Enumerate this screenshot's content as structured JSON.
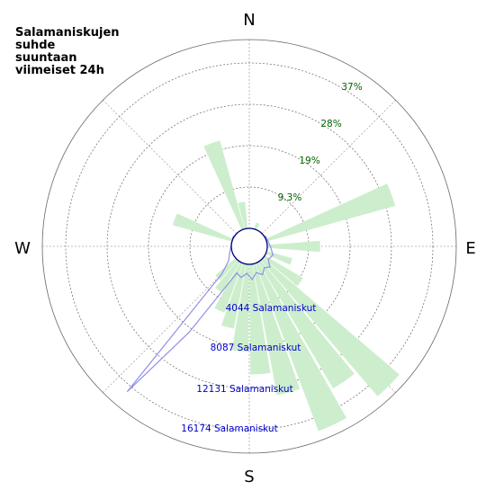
{
  "title_lines": [
    "Salamaniskujen",
    "suhde",
    "suuntaan",
    "viimeiset  24h"
  ],
  "compass": {
    "n": "N",
    "e": "E",
    "s": "S",
    "w": "W"
  },
  "colors": {
    "wedge_fill": "#cdeecd",
    "count_line": "#8f8fe8",
    "ring": "#666666",
    "spoke": "#aaaaaa",
    "center": "#00007a",
    "pct_text": "#006400",
    "count_text": "#0000cc"
  },
  "chart_data": {
    "type": "polar-rose",
    "direction_convention": "clockwise from north, degrees",
    "percentage_scale": {
      "rings": [
        9.3,
        19,
        28,
        37
      ],
      "labels": [
        "9.3%",
        "19%",
        "28%",
        "37%"
      ]
    },
    "count_scale": {
      "rings": [
        4044,
        8087,
        12131,
        16174
      ],
      "labels": [
        "4044 Salamaniskut",
        "8087 Salamaniskut",
        "12131 Salamaniskut",
        "16174 Salamaniskut"
      ]
    },
    "wedges": [
      {
        "dir": 20,
        "percent": 1.5
      },
      {
        "dir": 70,
        "percent": 30
      },
      {
        "dir": 90,
        "percent": 12
      },
      {
        "dir": 110,
        "percent": 6
      },
      {
        "dir": 125,
        "percent": 10
      },
      {
        "dir": 135,
        "percent": 40
      },
      {
        "dir": 145,
        "percent": 33
      },
      {
        "dir": 155,
        "percent": 40
      },
      {
        "dir": 165,
        "percent": 30
      },
      {
        "dir": 175,
        "percent": 25
      },
      {
        "dir": 185,
        "percent": 20
      },
      {
        "dir": 195,
        "percent": 15
      },
      {
        "dir": 205,
        "percent": 12
      },
      {
        "dir": 215,
        "percent": 8
      },
      {
        "dir": 225,
        "percent": 6
      },
      {
        "dir": 290,
        "percent": 14
      },
      {
        "dir": 340,
        "percent": 21
      },
      {
        "dir": 350,
        "percent": 6
      }
    ],
    "count_series": [
      {
        "dir": 0,
        "count": 0
      },
      {
        "dir": 60,
        "count": 120
      },
      {
        "dir": 90,
        "count": 300
      },
      {
        "dir": 110,
        "count": 700
      },
      {
        "dir": 125,
        "count": 500
      },
      {
        "dir": 135,
        "count": 1100
      },
      {
        "dir": 145,
        "count": 800
      },
      {
        "dir": 155,
        "count": 1300
      },
      {
        "dir": 165,
        "count": 900
      },
      {
        "dir": 175,
        "count": 1500
      },
      {
        "dir": 185,
        "count": 900
      },
      {
        "dir": 195,
        "count": 1400
      },
      {
        "dir": 205,
        "count": 1100
      },
      {
        "dir": 215,
        "count": 8500
      },
      {
        "dir": 220,
        "count": 16800
      },
      {
        "dir": 225,
        "count": 2000
      },
      {
        "dir": 235,
        "count": 700
      },
      {
        "dir": 250,
        "count": 300
      },
      {
        "dir": 300,
        "count": 80
      },
      {
        "dir": 340,
        "count": 0
      }
    ]
  }
}
